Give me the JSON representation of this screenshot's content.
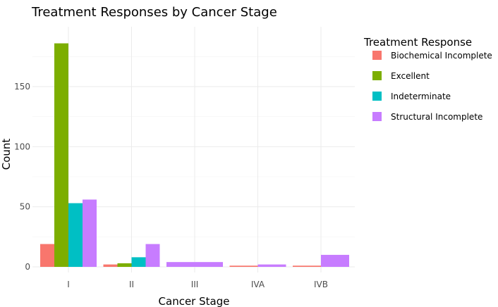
{
  "chart_data": {
    "type": "bar",
    "title": "Treatment Responses by Cancer Stage",
    "xlabel": "Cancer Stage",
    "ylabel": "Count",
    "categories": [
      "I",
      "II",
      "III",
      "IVA",
      "IVB"
    ],
    "ylim": [
      0,
      190
    ],
    "yticks": [
      0,
      50,
      100,
      150
    ],
    "grid": true,
    "legend": {
      "title": "Treatment Response",
      "position": "right"
    },
    "series": [
      {
        "name": "Biochemical Incomplete",
        "color": "#F8766D",
        "values": [
          19,
          2,
          null,
          1,
          1
        ]
      },
      {
        "name": "Excellent",
        "color": "#7CAE00",
        "values": [
          186,
          3,
          null,
          null,
          null
        ]
      },
      {
        "name": "Indeterminate",
        "color": "#00BFC4",
        "values": [
          53,
          8,
          null,
          null,
          null
        ]
      },
      {
        "name": "Structural Incomplete",
        "color": "#C77CFF",
        "values": [
          56,
          19,
          4,
          2,
          10
        ]
      }
    ]
  }
}
